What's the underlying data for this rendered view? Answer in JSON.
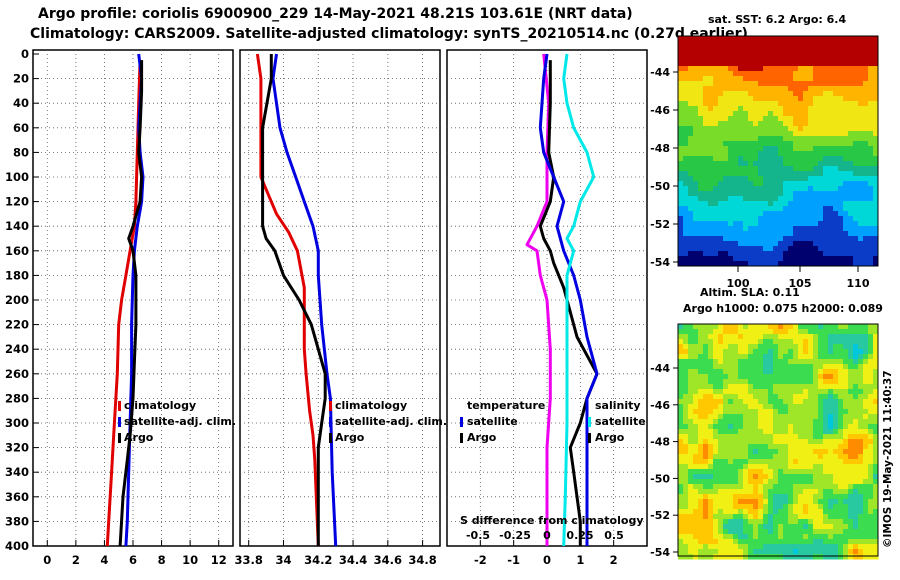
{
  "header": {
    "line1": "Argo profile: coriolis 6900900_229 14-May-2021 48.21S 103.61E (NRT data)",
    "line2": "Climatology: CARS2009. Satellite-adjusted climatology: synTS_20210514.nc (0.27d earlier)"
  },
  "colors": {
    "red": "#e00000",
    "blue": "#0000e0",
    "black": "#000000",
    "magenta": "#ee00ee",
    "cyan": "#00e8e8"
  },
  "chart_data": [
    {
      "id": "temperature",
      "type": "line",
      "xlim": [
        -1,
        13
      ],
      "ylim": [
        400,
        0
      ],
      "xticks": [
        "0",
        "2",
        "4",
        "6",
        "8",
        "10",
        "12"
      ],
      "yticks": [
        "0",
        "20",
        "40",
        "60",
        "80",
        "100",
        "120",
        "140",
        "160",
        "180",
        "200",
        "220",
        "240",
        "260",
        "280",
        "300",
        "320",
        "340",
        "360",
        "380",
        "400"
      ],
      "legend": [
        "climatology",
        "satellite-adj. clim.",
        "Argo"
      ],
      "series": [
        {
          "name": "climatology",
          "color": "red",
          "points": [
            [
              6.5,
              5
            ],
            [
              6.4,
              40
            ],
            [
              6.3,
              80
            ],
            [
              6.2,
              120
            ],
            [
              6.1,
              140
            ],
            [
              5.8,
              160
            ],
            [
              5.5,
              180
            ],
            [
              5.2,
              200
            ],
            [
              5.0,
              220
            ],
            [
              4.9,
              260
            ],
            [
              4.7,
              300
            ],
            [
              4.5,
              340
            ],
            [
              4.3,
              380
            ],
            [
              4.2,
              400
            ]
          ]
        },
        {
          "name": "satellite-adj. clim.",
          "color": "blue",
          "points": [
            [
              6.4,
              0
            ],
            [
              6.6,
              20
            ],
            [
              6.5,
              40
            ],
            [
              6.4,
              60
            ],
            [
              6.5,
              80
            ],
            [
              6.7,
              100
            ],
            [
              6.6,
              120
            ],
            [
              6.3,
              140
            ],
            [
              6.1,
              160
            ],
            [
              6.0,
              180
            ],
            [
              5.9,
              220
            ],
            [
              5.9,
              260
            ],
            [
              5.8,
              300
            ],
            [
              5.7,
              340
            ],
            [
              5.6,
              380
            ],
            [
              5.5,
              400
            ]
          ]
        },
        {
          "name": "Argo",
          "color": "black",
          "points": [
            [
              6.6,
              5
            ],
            [
              6.6,
              30
            ],
            [
              6.5,
              60
            ],
            [
              6.4,
              80
            ],
            [
              6.6,
              100
            ],
            [
              6.5,
              120
            ],
            [
              6.0,
              140
            ],
            [
              5.7,
              150
            ],
            [
              6.0,
              160
            ],
            [
              6.2,
              180
            ],
            [
              6.2,
              220
            ],
            [
              6.1,
              250
            ],
            [
              6.0,
              280
            ],
            [
              5.8,
              310
            ],
            [
              5.6,
              330
            ],
            [
              5.3,
              360
            ],
            [
              5.1,
              400
            ]
          ]
        }
      ]
    },
    {
      "id": "salinity",
      "type": "line",
      "xlim": [
        33.75,
        34.9
      ],
      "ylim": [
        400,
        0
      ],
      "xticks": [
        "33.8",
        "34",
        "34.2",
        "34.4",
        "34.6",
        "34.8"
      ],
      "legend": [
        "climatology",
        "satellite-adj. clim.",
        "Argo"
      ],
      "series": [
        {
          "name": "climatology",
          "color": "red",
          "points": [
            [
              33.85,
              0
            ],
            [
              33.87,
              20
            ],
            [
              33.87,
              100
            ],
            [
              33.9,
              110
            ],
            [
              33.96,
              130
            ],
            [
              34.03,
              145
            ],
            [
              34.08,
              160
            ],
            [
              34.12,
              190
            ],
            [
              34.12,
              240
            ],
            [
              34.13,
              260
            ],
            [
              34.15,
              290
            ],
            [
              34.17,
              310
            ],
            [
              34.18,
              330
            ],
            [
              34.2,
              400
            ]
          ]
        },
        {
          "name": "satellite-adj. clim.",
          "color": "blue",
          "points": [
            [
              33.96,
              0
            ],
            [
              33.94,
              20
            ],
            [
              33.96,
              40
            ],
            [
              33.98,
              60
            ],
            [
              34.02,
              80
            ],
            [
              34.07,
              100
            ],
            [
              34.12,
              120
            ],
            [
              34.17,
              140
            ],
            [
              34.2,
              160
            ],
            [
              34.2,
              180
            ],
            [
              34.22,
              220
            ],
            [
              34.25,
              260
            ],
            [
              34.27,
              280
            ],
            [
              34.28,
              340
            ],
            [
              34.3,
              400
            ]
          ]
        },
        {
          "name": "Argo",
          "color": "black",
          "points": [
            [
              33.93,
              0
            ],
            [
              33.93,
              20
            ],
            [
              33.88,
              60
            ],
            [
              33.88,
              140
            ],
            [
              33.9,
              150
            ],
            [
              33.95,
              160
            ],
            [
              34.0,
              180
            ],
            [
              34.09,
              200
            ],
            [
              34.16,
              220
            ],
            [
              34.2,
              240
            ],
            [
              34.24,
              260
            ],
            [
              34.24,
              280
            ],
            [
              34.22,
              300
            ],
            [
              34.2,
              320
            ],
            [
              34.2,
              400
            ]
          ]
        }
      ]
    },
    {
      "id": "difference",
      "type": "line",
      "xlim": [
        -3,
        3
      ],
      "ylim": [
        400,
        0
      ],
      "xticks": [
        "-2",
        "-1",
        "0",
        "1",
        "2"
      ],
      "secondary_xlabel": "S difference from climatology",
      "secondary_xticks": [
        "-0.5",
        "-0.25",
        "0",
        "0.25",
        "0.5"
      ],
      "legend": {
        "temperature_heading": "temperature",
        "salinity_heading": "salinity",
        "satellite": "satellite",
        "argo": "Argo"
      },
      "series": [
        {
          "name": "temperature satellite",
          "color": "magenta",
          "points": [
            [
              -0.1,
              0
            ],
            [
              0.05,
              40
            ],
            [
              0,
              80
            ],
            [
              0,
              120
            ],
            [
              -0.3,
              140
            ],
            [
              -0.6,
              155
            ],
            [
              -0.3,
              160
            ],
            [
              -0.2,
              180
            ],
            [
              0,
              200
            ],
            [
              0.1,
              240
            ],
            [
              0.1,
              280
            ],
            [
              0,
              320
            ],
            [
              0,
              380
            ],
            [
              0,
              400
            ]
          ]
        },
        {
          "name": "temperature Argo",
          "color": "black",
          "points": [
            [
              0.1,
              5
            ],
            [
              0.1,
              40
            ],
            [
              0.05,
              80
            ],
            [
              0.2,
              100
            ],
            [
              0.1,
              120
            ],
            [
              -0.2,
              140
            ],
            [
              -0.1,
              150
            ],
            [
              0.1,
              160
            ],
            [
              0.2,
              170
            ],
            [
              0.5,
              190
            ],
            [
              0.9,
              230
            ],
            [
              1.5,
              260
            ],
            [
              1.2,
              280
            ],
            [
              1.0,
              300
            ],
            [
              0.7,
              320
            ],
            [
              0.8,
              340
            ],
            [
              1.0,
              380
            ],
            [
              1.0,
              400
            ]
          ]
        },
        {
          "name": "salinity Argo",
          "color": "blue",
          "points": [
            [
              0,
              0
            ],
            [
              -0.1,
              20
            ],
            [
              -0.2,
              60
            ],
            [
              -0.1,
              80
            ],
            [
              0.2,
              100
            ],
            [
              0.5,
              120
            ],
            [
              0.3,
              140
            ],
            [
              0.5,
              160
            ],
            [
              0.8,
              180
            ],
            [
              1.0,
              200
            ],
            [
              1.2,
              230
            ],
            [
              1.5,
              260
            ],
            [
              1.2,
              280
            ],
            [
              1.2,
              320
            ],
            [
              1.2,
              400
            ]
          ]
        },
        {
          "name": "salinity satellite",
          "color": "cyan",
          "points": [
            [
              0.6,
              0
            ],
            [
              0.5,
              20
            ],
            [
              0.6,
              40
            ],
            [
              0.8,
              60
            ],
            [
              1.2,
              80
            ],
            [
              1.4,
              100
            ],
            [
              1.0,
              120
            ],
            [
              0.8,
              140
            ],
            [
              0.6,
              150
            ],
            [
              0.8,
              160
            ],
            [
              0.6,
              180
            ],
            [
              0.6,
              220
            ],
            [
              0.6,
              260
            ],
            [
              0.6,
              300
            ],
            [
              0.55,
              360
            ],
            [
              0.5,
              400
            ]
          ]
        }
      ]
    }
  ],
  "maps": {
    "sst": {
      "title": "sat. SST: 6.2 Argo: 6.4",
      "yticks": [
        "-44",
        "-46",
        "-48",
        "-50",
        "-52",
        "-54"
      ],
      "xticks": [
        "100",
        "105",
        "110"
      ],
      "palette": [
        "#00006e",
        "#0a3cc8",
        "#00a0ff",
        "#00d8d8",
        "#14b48c",
        "#28c846",
        "#78dc28",
        "#f0e614",
        "#ffb400",
        "#ff6400",
        "#b40000"
      ]
    },
    "sla": {
      "title_line1": "Altim. SLA: 0.11",
      "title_line2": "Argo h1000: 0.075 h2000: 0.089",
      "yticks": [
        "-44",
        "-46",
        "-48",
        "-50",
        "-52",
        "-54"
      ],
      "palette": [
        "#00c8dc",
        "#28c8a0",
        "#3cdc50",
        "#a0e628",
        "#f0f014",
        "#ffc800",
        "#ff8c00"
      ]
    },
    "credit": "©IMOS 19-May-2021 11:40:37"
  }
}
